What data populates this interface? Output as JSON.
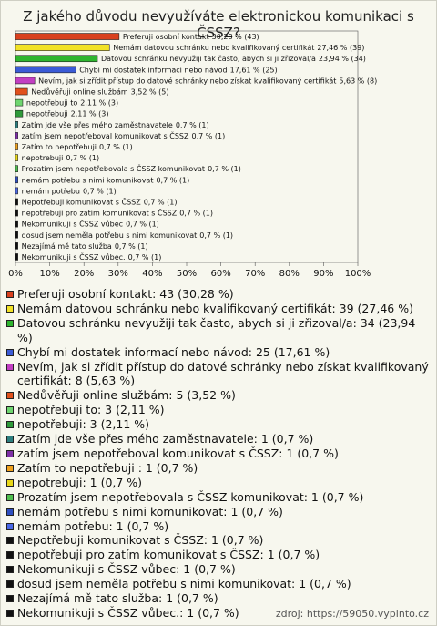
{
  "chart_data": {
    "type": "bar",
    "orientation": "horizontal",
    "title": "Z jakého důvodu nevyužíváte elektronickou komunikaci s ČSSZ?",
    "categories": [
      "Preferuji osobní kontakt",
      "Nemám datovou schránku nebo kvalifikovaný certifikát",
      "Datovou schránku nevyužiji tak často, abych si ji zřizoval/a",
      "Chybí mi dostatek informací nebo návod",
      "Nevím, jak si zřídit přístup do datové schránky nebo získat kvalifikovaný certifikát",
      "Nedůvěřuji online službám",
      "nepotřebuji to",
      "nepotřebuji",
      "Zatím jde vše přes mého zaměstnavatele",
      "zatím jsem nepotřeboval komunikovat s ČSSZ",
      "Zatím to nepotřebuji",
      "nepotrebuji",
      "Prozatím jsem nepotřebovala s ČSSZ komunikovat",
      "nemám potřebu s nimi komunikovat",
      "nemám potřebu",
      "Nepotřebuji komunikovat s ČSSZ",
      "nepotřebuji pro zatím komunikovat s ČSSZ",
      "Nekomunikuji s ČSSZ vůbec",
      "dosud jsem neměla potřebu s nimi komunikovat",
      "Nezajímá mě tato služba",
      "Nekomunikuji s ČSSZ vůbec."
    ],
    "values": [
      30.28,
      27.46,
      23.94,
      17.61,
      5.63,
      3.52,
      2.11,
      2.11,
      0.7,
      0.7,
      0.7,
      0.7,
      0.7,
      0.7,
      0.7,
      0.7,
      0.7,
      0.7,
      0.7,
      0.7,
      0.7
    ],
    "value_labels": [
      "30,28 % (43)",
      "27,46 % (39)",
      "23,94 % (34)",
      "17,61 % (25)",
      "5,63 % (8)",
      "3,52 % (5)",
      "2,11 % (3)",
      "2,11 % (3)",
      "0,7 % (1)",
      "0,7 % (1)",
      "0,7 % (1)",
      "0,7 % (1)",
      "0,7 % (1)",
      "0,7 % (1)",
      "0,7 % (1)",
      "0,7 % (1)",
      "0,7 % (1)",
      "0,7 % (1)",
      "0,7 % (1)",
      "0,7 % (1)",
      "0,7 % (1)"
    ],
    "colors": [
      "#d9401e",
      "#f2e226",
      "#2fb52f",
      "#3b5bd6",
      "#c23fc2",
      "#e0501c",
      "#6fd66f",
      "#2f9a3a",
      "#2c7f7f",
      "#7d2fa6",
      "#f0a21e",
      "#e8d818",
      "#4fbf4f",
      "#2f4fc0",
      "#4a68e6",
      "#111111",
      "#111111",
      "#111111",
      "#111111",
      "#111111",
      "#111111"
    ],
    "legend_labels": [
      "Preferuji osobní kontakt: 43 (30,28 %)",
      "Nemám datovou schránku nebo kvalifikovaný certifikát: 39 (27,46 %)",
      "Datovou schránku nevyužiji tak často, abych si ji zřizoval/a: 34 (23,94 %)",
      "Chybí mi dostatek informací nebo návod: 25 (17,61 %)",
      "Nevím, jak si zřídit přístup do datové schránky nebo získat kvalifikovaný certifikát: 8 (5,63 %)",
      "Nedůvěřuji online službám: 5 (3,52 %)",
      "nepotřebuji to: 3 (2,11 %)",
      "nepotřebuji: 3 (2,11 %)",
      "Zatím jde vše přes mého zaměstnavatele: 1 (0,7 %)",
      "zatím jsem nepotřeboval komunikovat s ČSSZ: 1 (0,7 %)",
      "Zatím to nepotřebuji : 1 (0,7 %)",
      "nepotrebuji: 1 (0,7 %)",
      "Prozatím jsem nepotřebovala s ČSSZ komunikovat: 1 (0,7 %)",
      "nemám potřebu s nimi komunikovat: 1 (0,7 %)",
      "nemám potřebu: 1 (0,7 %)",
      "Nepotřebuji komunikovat s ČSSZ: 1 (0,7 %)",
      "nepotřebuji pro zatím komunikovat s ČSSZ: 1 (0,7 %)",
      "Nekomunikuji s ČSSZ vůbec: 1 (0,7 %)",
      "dosud jsem neměla potřebu s nimi komunikovat: 1 (0,7 %)",
      "Nezajímá mě tato služba: 1 (0,7 %)",
      "Nekomunikuji s ČSSZ vůbec.: 1 (0,7 %)"
    ],
    "xlim": [
      0,
      100
    ],
    "xticks": [
      {
        "value": 0,
        "label": "0%"
      },
      {
        "value": 10,
        "label": "10%"
      },
      {
        "value": 20,
        "label": "20%"
      },
      {
        "value": 30,
        "label": "30%"
      },
      {
        "value": 40,
        "label": "40%"
      },
      {
        "value": 50,
        "label": "50%"
      },
      {
        "value": 60,
        "label": "60%"
      },
      {
        "value": 70,
        "label": "70%"
      },
      {
        "value": 80,
        "label": "80%"
      },
      {
        "value": 90,
        "label": "90%"
      },
      {
        "value": 100,
        "label": "100%"
      }
    ],
    "grid": false,
    "source": "zdroj: https://59050.vyplnto.cz"
  }
}
